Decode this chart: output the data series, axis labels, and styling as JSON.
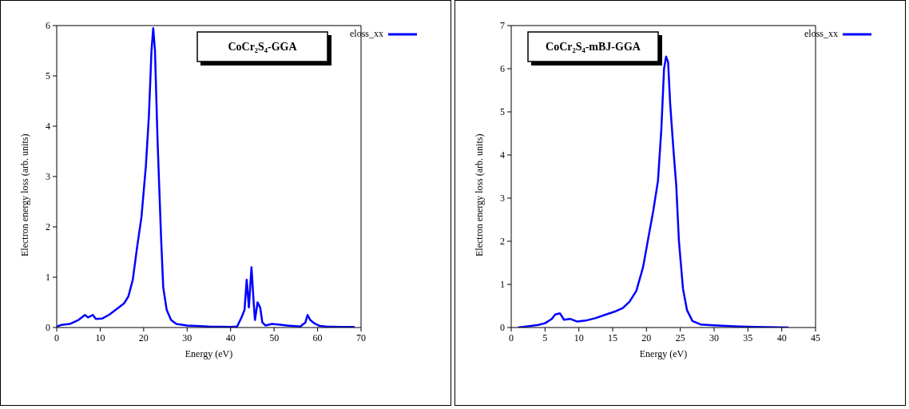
{
  "chart_data": [
    {
      "type": "line",
      "title": "CoCr₂S₄-GGA",
      "xlabel": "Energy (eV)",
      "ylabel": "Electron energy loss (arb. units)",
      "xlim": [
        0,
        70
      ],
      "xticks": [
        0,
        10,
        20,
        30,
        40,
        50,
        60,
        70
      ],
      "ylim": [
        0,
        6
      ],
      "yticks": [
        0,
        1,
        2,
        3,
        4,
        5,
        6
      ],
      "legend": "top right",
      "series": [
        {
          "name": "eloss_xx",
          "color": "#0000ff",
          "x": [
            0,
            1,
            3,
            5,
            6.5,
            7.2,
            8.3,
            9,
            10.5,
            12,
            14,
            15.5,
            16.5,
            17.5,
            18.5,
            19.5,
            20.5,
            21.2,
            21.8,
            22.2,
            22.6,
            23.2,
            24,
            24.5,
            25.3,
            26.3,
            27.5,
            30,
            35,
            40,
            41.5,
            42.5,
            43.2,
            43.7,
            44.2,
            44.8,
            45.3,
            45.6,
            46.2,
            46.8,
            47.3,
            48,
            49.5,
            51,
            53,
            56,
            57.2,
            57.7,
            58.3,
            59.3,
            60.5,
            62,
            65,
            68.5
          ],
          "values": [
            0.02,
            0.05,
            0.07,
            0.15,
            0.25,
            0.2,
            0.25,
            0.17,
            0.18,
            0.25,
            0.38,
            0.48,
            0.62,
            0.95,
            1.6,
            2.2,
            3.2,
            4.2,
            5.5,
            5.95,
            5.5,
            3.7,
            1.8,
            0.8,
            0.35,
            0.15,
            0.07,
            0.04,
            0.02,
            0.01,
            0.02,
            0.2,
            0.35,
            0.95,
            0.4,
            1.2,
            0.5,
            0.15,
            0.5,
            0.4,
            0.1,
            0.04,
            0.07,
            0.06,
            0.04,
            0.02,
            0.1,
            0.25,
            0.15,
            0.08,
            0.03,
            0.02,
            0.01,
            0.01
          ]
        }
      ]
    },
    {
      "type": "line",
      "title": "CoCr₂S₄-mBJ-GGA",
      "xlabel": "Energy (eV)",
      "ylabel": "Electron energy loss (arb. units)",
      "xlim": [
        0,
        45
      ],
      "xticks": [
        0,
        5,
        10,
        15,
        20,
        25,
        30,
        35,
        40,
        45
      ],
      "ylim": [
        0,
        7
      ],
      "yticks": [
        0,
        1,
        2,
        3,
        4,
        5,
        6,
        7
      ],
      "legend": "top right",
      "series": [
        {
          "name": "eloss_xx",
          "color": "#0000ff",
          "x": [
            1,
            2,
            4,
            5,
            6,
            6.5,
            7.2,
            7.8,
            8.7,
            9.7,
            11,
            12.5,
            14,
            15.5,
            16.5,
            17.5,
            18.5,
            19.5,
            20.3,
            21,
            21.7,
            22.2,
            22.6,
            22.9,
            23.2,
            23.5,
            24,
            24.4,
            24.8,
            25.4,
            26,
            26.8,
            28,
            30,
            33,
            36,
            41
          ],
          "values": [
            0,
            0.02,
            0.06,
            0.1,
            0.2,
            0.3,
            0.33,
            0.18,
            0.2,
            0.14,
            0.16,
            0.22,
            0.3,
            0.38,
            0.45,
            0.6,
            0.85,
            1.4,
            2.1,
            2.7,
            3.4,
            4.6,
            6,
            6.28,
            6.15,
            5.2,
            4.1,
            3.3,
            2,
            0.9,
            0.4,
            0.15,
            0.07,
            0.05,
            0.03,
            0.015,
            0
          ]
        }
      ]
    }
  ]
}
